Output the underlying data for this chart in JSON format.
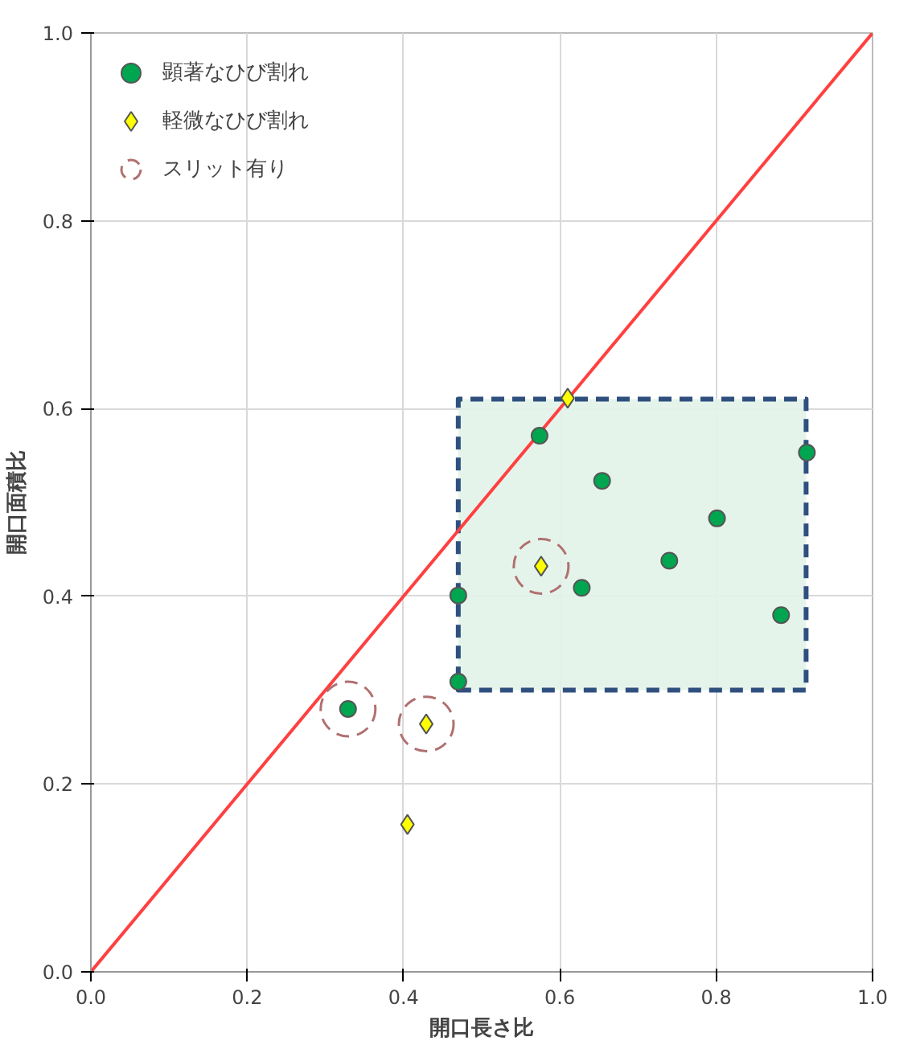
{
  "chart_data": {
    "type": "scatter",
    "xlabel": "開口長さ比",
    "ylabel": "開口面積比",
    "xlim": [
      0,
      1
    ],
    "ylim": [
      0,
      1
    ],
    "xticks": [
      {
        "value": 0,
        "label": "0.0"
      },
      0.2,
      0.4,
      0.6,
      0.8,
      {
        "value": 1,
        "label": "1.0"
      }
    ],
    "yticks": [
      {
        "value": 0,
        "label": "0.0"
      },
      0.2,
      0.4,
      0.6,
      0.8,
      {
        "value": 1,
        "label": "1.0"
      }
    ],
    "grid": true,
    "legend": "top left",
    "series": [
      {
        "type": "area",
        "color": "#e2f3e8",
        "x": [
          0.47,
          0.915,
          0.915,
          0.47,
          0.47
        ],
        "values": [
          0.3,
          0.3,
          0.61,
          0.61,
          0.3
        ],
        "line_style": "dashed"
      },
      {
        "type": "line",
        "color": "#ff4040",
        "x": [
          0,
          1
        ],
        "values": [
          0,
          1
        ],
        "marker": "none"
      },
      {
        "name": "顕著なひび割れ",
        "color": "#00a550",
        "marker": "circle",
        "x": [
          0.574,
          0.916,
          0.654,
          0.801,
          0.74,
          0.47,
          0.628,
          0.883,
          0.47,
          0.329
        ],
        "values": [
          0.571,
          0.553,
          0.523,
          0.483,
          0.438,
          0.401,
          0.409,
          0.38,
          0.309,
          0.28
        ]
      },
      {
        "name": "軽微なひび割れ",
        "color": "#ffff00",
        "marker": "diamond",
        "x": [
          0.61,
          0.576,
          0.429,
          0.405
        ],
        "values": [
          0.611,
          0.432,
          0.264,
          0.157
        ]
      },
      {
        "name": "スリット有り",
        "color": "#b07070",
        "marker": "circle",
        "line_style": "dashed",
        "x": [
          0.329,
          0.429,
          0.576
        ],
        "values": [
          0.28,
          0.264,
          0.432
        ]
      }
    ]
  }
}
